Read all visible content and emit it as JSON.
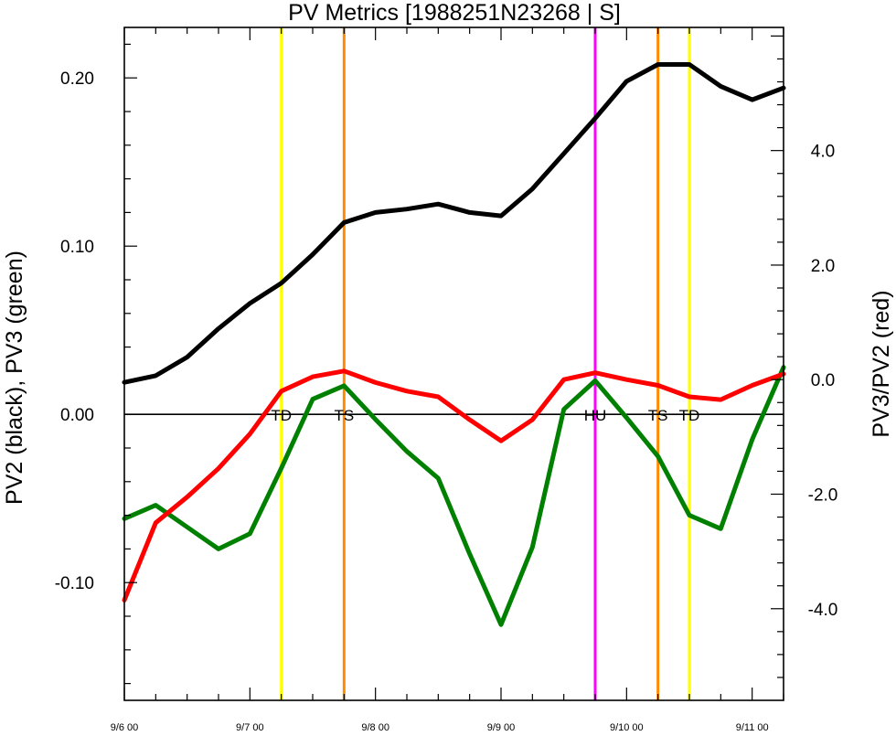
{
  "chart_data": {
    "type": "line",
    "title": "PV Metrics [1988251N23268 | S]",
    "ylabel_left": "PV2 (black), PV3 (green)",
    "ylabel_right": "PV3/PV2 (red)",
    "xlim": [
      0,
      5.25
    ],
    "ylim_left": [
      -0.17,
      0.23
    ],
    "ylim_right": [
      -5.6,
      6.15
    ],
    "x_ticks": [
      {
        "x": 0,
        "label": "9/6 00"
      },
      {
        "x": 1,
        "label": "9/7 00"
      },
      {
        "x": 2,
        "label": "9/8 00"
      },
      {
        "x": 3,
        "label": "9/9 00"
      },
      {
        "x": 4,
        "label": "9/10 00"
      },
      {
        "x": 5,
        "label": "9/11 00"
      }
    ],
    "y_ticks_left": [
      {
        "value": -0.1,
        "label": "-0.10"
      },
      {
        "value": 0.0,
        "label": "0.00"
      },
      {
        "value": 0.1,
        "label": "0.10"
      },
      {
        "value": 0.2,
        "label": "0.20"
      }
    ],
    "y_ticks_right": [
      {
        "value": -4,
        "label": "-4.0"
      },
      {
        "value": -2,
        "label": "-2.0"
      },
      {
        "value": 0,
        "label": "0.0"
      },
      {
        "value": 2,
        "label": "2.0"
      },
      {
        "value": 4,
        "label": "4.0"
      }
    ],
    "zero_line": 0,
    "series": [
      {
        "key": "pv2",
        "axis": "left",
        "color": "#000000",
        "x": [
          0,
          0.25,
          0.5,
          0.75,
          1,
          1.25,
          1.5,
          1.75,
          2,
          2.25,
          2.5,
          2.75,
          3,
          3.25,
          3.5,
          3.75,
          4,
          4.25,
          4.5,
          4.75,
          5,
          5.25
        ],
        "values": [
          0.019,
          0.023,
          0.034,
          0.051,
          0.066,
          0.078,
          0.095,
          0.114,
          0.12,
          0.122,
          0.125,
          0.12,
          0.118,
          0.134,
          0.155,
          0.176,
          0.198,
          0.208,
          0.208,
          0.195,
          0.187,
          0.194
        ]
      },
      {
        "key": "pv3",
        "axis": "left",
        "color": "#008000",
        "x": [
          0,
          0.25,
          0.5,
          0.75,
          1,
          1.25,
          1.5,
          1.75,
          2,
          2.25,
          2.5,
          2.75,
          3,
          3.25,
          3.5,
          3.75,
          4,
          4.25,
          4.5,
          4.75,
          5,
          5.25
        ],
        "values": [
          -0.062,
          -0.054,
          -0.067,
          -0.08,
          -0.071,
          -0.032,
          0.009,
          0.017,
          -0.003,
          -0.022,
          -0.038,
          -0.083,
          -0.125,
          -0.079,
          0.003,
          0.02,
          -0.002,
          -0.025,
          -0.06,
          -0.068,
          -0.015,
          0.028
        ]
      },
      {
        "key": "ratio",
        "axis": "right",
        "color": "#ff0000",
        "x": [
          0,
          0.25,
          0.5,
          0.75,
          1,
          1.25,
          1.5,
          1.75,
          2,
          2.25,
          2.5,
          2.75,
          3,
          3.25,
          3.5,
          3.75,
          4,
          4.25,
          4.5,
          4.75,
          5,
          5.25
        ],
        "values": [
          -3.85,
          -2.5,
          -2.05,
          -1.55,
          -0.95,
          -0.2,
          0.05,
          0.15,
          -0.05,
          -0.2,
          -0.3,
          -0.7,
          -1.07,
          -0.7,
          0.0,
          0.12,
          0.0,
          -0.1,
          -0.3,
          -0.35,
          -0.1,
          0.1
        ]
      }
    ],
    "events": [
      {
        "x": 1.25,
        "label": "TD",
        "color": "#ffff00"
      },
      {
        "x": 1.75,
        "label": "TS",
        "color": "#ff8c00"
      },
      {
        "x": 3.75,
        "label": "HU",
        "color": "#ff00ff"
      },
      {
        "x": 4.25,
        "label": "TS",
        "color": "#ff8c00"
      },
      {
        "x": 4.5,
        "label": "TD",
        "color": "#ffff00"
      }
    ]
  }
}
